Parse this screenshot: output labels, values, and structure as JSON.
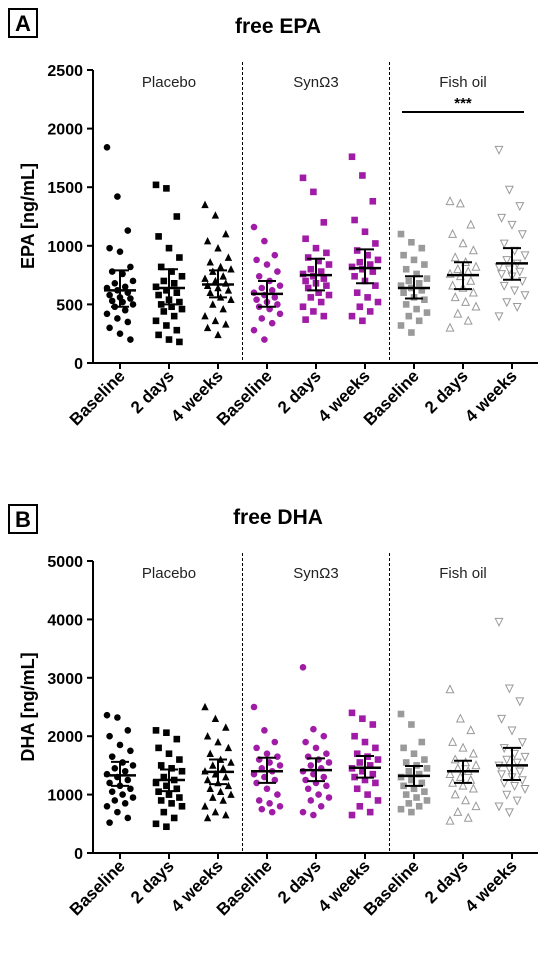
{
  "colors": {
    "placebo": "#000000",
    "synomega3": "#a01ba6",
    "fish_oil": "#9a9a9a"
  },
  "chart_data": [
    {
      "type": "scatter",
      "panel": "A",
      "title": "free EPA",
      "ylabel": "EPA [ng/mL]",
      "ylim": [
        0,
        2500
      ],
      "yticks": [
        "0",
        "500",
        "1000",
        "1500",
        "2000",
        "2500"
      ],
      "categories": [
        "Baseline",
        "2 days",
        "4 weeks",
        "Baseline",
        "2 days",
        "4 weeks",
        "Baseline",
        "2 days",
        "4 weeks"
      ],
      "groups": [
        {
          "label": "Placebo",
          "marker_shapes": [
            "circle",
            "square",
            "triangle"
          ]
        },
        {
          "label": "SynΩ3",
          "marker_shapes": [
            "circle",
            "square",
            "square"
          ]
        },
        {
          "label": "Fish oil",
          "marker_shapes": [
            "square",
            "triangle-open",
            "triangle-down-open"
          ]
        }
      ],
      "significance": {
        "label": "***",
        "from_category": 6,
        "to_category": 8
      },
      "series": [
        {
          "values": [
            1840,
            1420,
            1130,
            980,
            950,
            820,
            780,
            760,
            700,
            680,
            650,
            640,
            620,
            600,
            580,
            560,
            550,
            530,
            520,
            500,
            480,
            450,
            420,
            380,
            350,
            300,
            250,
            200
          ],
          "mean": 620,
          "ci": [
            480,
            790
          ]
        },
        {
          "values": [
            1520,
            1490,
            1250,
            1080,
            980,
            900,
            820,
            780,
            740,
            700,
            680,
            650,
            620,
            600,
            580,
            540,
            520,
            500,
            480,
            460,
            440,
            400,
            360,
            320,
            280,
            240,
            200,
            180
          ],
          "mean": 640,
          "ci": [
            500,
            800
          ]
        },
        {
          "values": [
            1350,
            1260,
            1100,
            1040,
            980,
            900,
            860,
            820,
            800,
            780,
            740,
            720,
            700,
            680,
            660,
            640,
            620,
            600,
            560,
            540,
            500,
            460,
            400,
            360,
            330,
            300,
            240
          ],
          "mean": 670,
          "ci": [
            560,
            790
          ]
        },
        {
          "values": [
            1160,
            1040,
            920,
            880,
            840,
            780,
            740,
            700,
            660,
            640,
            620,
            600,
            580,
            560,
            540,
            520,
            500,
            480,
            460,
            420,
            380,
            340,
            280,
            200
          ],
          "mean": 590,
          "ci": [
            480,
            700
          ]
        },
        {
          "values": [
            1580,
            1460,
            1200,
            1060,
            980,
            940,
            900,
            870,
            840,
            800,
            780,
            760,
            740,
            720,
            700,
            680,
            660,
            640,
            600,
            580,
            560,
            520,
            480,
            440,
            400,
            370
          ],
          "mean": 750,
          "ci": [
            620,
            890
          ]
        },
        {
          "values": [
            1760,
            1600,
            1380,
            1220,
            1120,
            1020,
            960,
            920,
            880,
            860,
            840,
            820,
            800,
            780,
            740,
            700,
            660,
            600,
            560,
            520,
            480,
            440,
            400,
            360
          ],
          "mean": 810,
          "ci": [
            680,
            970
          ]
        },
        {
          "values": [
            1100,
            1030,
            980,
            920,
            880,
            840,
            800,
            760,
            720,
            700,
            680,
            660,
            640,
            620,
            600,
            560,
            540,
            500,
            460,
            430,
            400,
            360,
            320,
            260
          ],
          "mean": 640,
          "ci": [
            550,
            740
          ]
        },
        {
          "values": [
            1380,
            1360,
            1180,
            1100,
            1020,
            960,
            900,
            860,
            820,
            800,
            780,
            760,
            740,
            700,
            660,
            640,
            600,
            560,
            520,
            480,
            420,
            360,
            300
          ],
          "mean": 750,
          "ci": [
            630,
            860
          ]
        },
        {
          "values": [
            1820,
            1480,
            1340,
            1240,
            1180,
            1100,
            1020,
            960,
            920,
            880,
            850,
            820,
            800,
            780,
            760,
            740,
            700,
            660,
            620,
            580,
            520,
            480,
            400
          ],
          "mean": 850,
          "ci": [
            710,
            980
          ]
        }
      ]
    },
    {
      "type": "scatter",
      "panel": "B",
      "title": "free DHA",
      "ylabel": "DHA [ng/mL]",
      "ylim": [
        0,
        5000
      ],
      "yticks": [
        "0",
        "1000",
        "2000",
        "3000",
        "4000",
        "5000"
      ],
      "categories": [
        "Baseline",
        "2 days",
        "4 weeks",
        "Baseline",
        "2 days",
        "4 weeks",
        "Baseline",
        "2 days",
        "4 weeks"
      ],
      "groups": [
        {
          "label": "Placebo",
          "marker_shapes": [
            "circle",
            "square",
            "triangle"
          ]
        },
        {
          "label": "SynΩ3",
          "marker_shapes": [
            "circle",
            "circle",
            "square"
          ]
        },
        {
          "label": "Fish oil",
          "marker_shapes": [
            "square",
            "triangle-open",
            "triangle-down-open"
          ]
        }
      ],
      "series": [
        {
          "values": [
            2360,
            2320,
            2100,
            2000,
            1850,
            1750,
            1650,
            1550,
            1500,
            1450,
            1400,
            1350,
            1300,
            1250,
            1200,
            1150,
            1100,
            1050,
            1000,
            950,
            900,
            850,
            800,
            700,
            600,
            520
          ],
          "mean": 1330,
          "ci": [
            1150,
            1560
          ]
        },
        {
          "values": [
            2100,
            2060,
            1950,
            1800,
            1700,
            1600,
            1500,
            1450,
            1400,
            1300,
            1250,
            1200,
            1150,
            1100,
            1050,
            1000,
            950,
            900,
            850,
            800,
            700,
            600,
            500,
            450
          ],
          "mean": 1250,
          "ci": [
            1060,
            1430
          ]
        },
        {
          "values": [
            2500,
            2300,
            2150,
            2000,
            1900,
            1800,
            1700,
            1600,
            1550,
            1500,
            1450,
            1400,
            1350,
            1300,
            1250,
            1200,
            1150,
            1100,
            1050,
            1000,
            950,
            900,
            800,
            700,
            650,
            600
          ],
          "mean": 1390,
          "ci": [
            1180,
            1600
          ]
        },
        {
          "values": [
            2500,
            2100,
            1900,
            1800,
            1700,
            1650,
            1600,
            1550,
            1500,
            1450,
            1400,
            1350,
            1300,
            1250,
            1200,
            1100,
            1000,
            900,
            850,
            800,
            750,
            700
          ],
          "mean": 1400,
          "ci": [
            1200,
            1630
          ]
        },
        {
          "values": [
            3180,
            2120,
            2000,
            1900,
            1800,
            1700,
            1650,
            1600,
            1550,
            1500,
            1450,
            1400,
            1350,
            1300,
            1250,
            1200,
            1150,
            1100,
            1000,
            950,
            900,
            800,
            700,
            650
          ],
          "mean": 1420,
          "ci": [
            1230,
            1620
          ]
        },
        {
          "values": [
            2400,
            2300,
            2200,
            2000,
            1900,
            1800,
            1700,
            1650,
            1600,
            1550,
            1500,
            1450,
            1400,
            1350,
            1300,
            1250,
            1200,
            1100,
            1000,
            900,
            800,
            700,
            650
          ],
          "mean": 1460,
          "ci": [
            1290,
            1660
          ]
        },
        {
          "values": [
            2380,
            2200,
            1900,
            1800,
            1700,
            1600,
            1550,
            1500,
            1450,
            1400,
            1350,
            1300,
            1250,
            1200,
            1150,
            1100,
            1050,
            1000,
            950,
            900,
            850,
            800,
            750,
            700
          ],
          "mean": 1320,
          "ci": [
            1150,
            1490
          ]
        },
        {
          "values": [
            2800,
            2300,
            2100,
            1900,
            1800,
            1700,
            1600,
            1550,
            1500,
            1450,
            1400,
            1350,
            1300,
            1250,
            1200,
            1150,
            1100,
            1000,
            900,
            800,
            700,
            600,
            550
          ],
          "mean": 1400,
          "ci": [
            1200,
            1580
          ]
        },
        {
          "values": [
            3960,
            2820,
            2600,
            2300,
            2100,
            1900,
            1800,
            1700,
            1650,
            1600,
            1550,
            1500,
            1450,
            1400,
            1350,
            1300,
            1250,
            1200,
            1150,
            1100,
            1000,
            900,
            800,
            700
          ],
          "mean": 1500,
          "ci": [
            1250,
            1800
          ]
        }
      ]
    }
  ]
}
